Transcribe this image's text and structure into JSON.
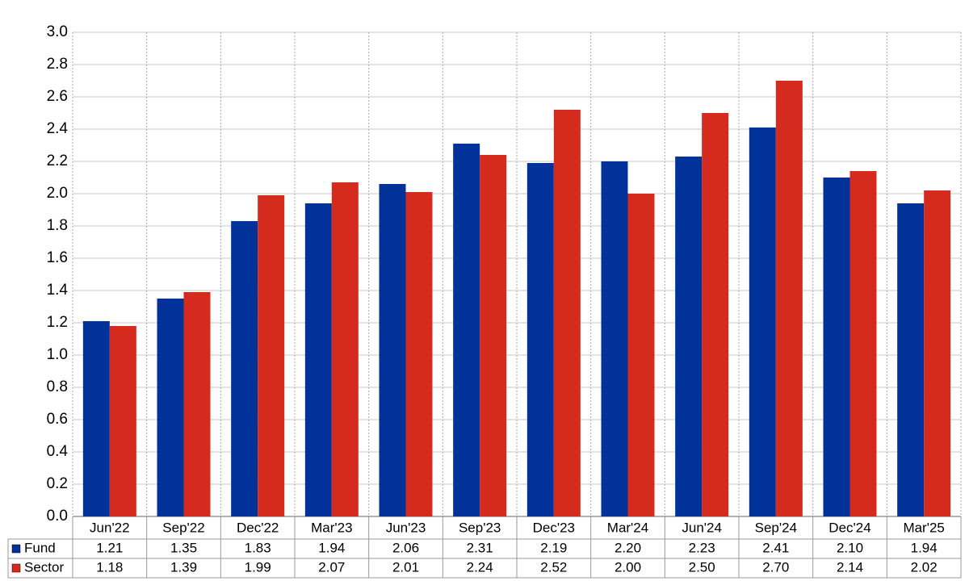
{
  "chart_data": {
    "type": "bar",
    "categories": [
      "Jun'22",
      "Sep'22",
      "Dec'22",
      "Mar'23",
      "Jun'23",
      "Sep'23",
      "Dec'23",
      "Mar'24",
      "Jun'24",
      "Sep'24",
      "Dec'24",
      "Mar'25"
    ],
    "series": [
      {
        "name": "Fund",
        "color": "#003299",
        "values": [
          1.21,
          1.35,
          1.83,
          1.94,
          2.06,
          2.31,
          2.19,
          2.2,
          2.23,
          2.41,
          2.1,
          1.94
        ],
        "value_labels": [
          "1.21",
          "1.35",
          "1.83",
          "1.94",
          "2.06",
          "2.31",
          "2.19",
          "2.20",
          "2.23",
          "2.41",
          "2.10",
          "1.94"
        ]
      },
      {
        "name": "Sector",
        "color": "#d52b1e",
        "values": [
          1.18,
          1.39,
          1.99,
          2.07,
          2.01,
          2.24,
          2.52,
          2.0,
          2.5,
          2.7,
          2.14,
          2.02
        ],
        "value_labels": [
          "1.18",
          "1.39",
          "1.99",
          "2.07",
          "2.01",
          "2.24",
          "2.52",
          "2.00",
          "2.50",
          "2.70",
          "2.14",
          "2.02"
        ]
      }
    ],
    "ylim": [
      0,
      3
    ],
    "yticks": [
      {
        "value": 0,
        "label": "0.0"
      },
      0.2,
      0.4,
      0.6,
      0.8,
      {
        "value": 1,
        "label": "1.0"
      },
      1.2,
      1.4,
      1.6,
      1.8,
      {
        "value": 2,
        "label": "2.0"
      },
      2.2,
      2.4,
      2.6,
      2.8,
      {
        "value": 3,
        "label": "3.0"
      }
    ],
    "grid": true
  }
}
